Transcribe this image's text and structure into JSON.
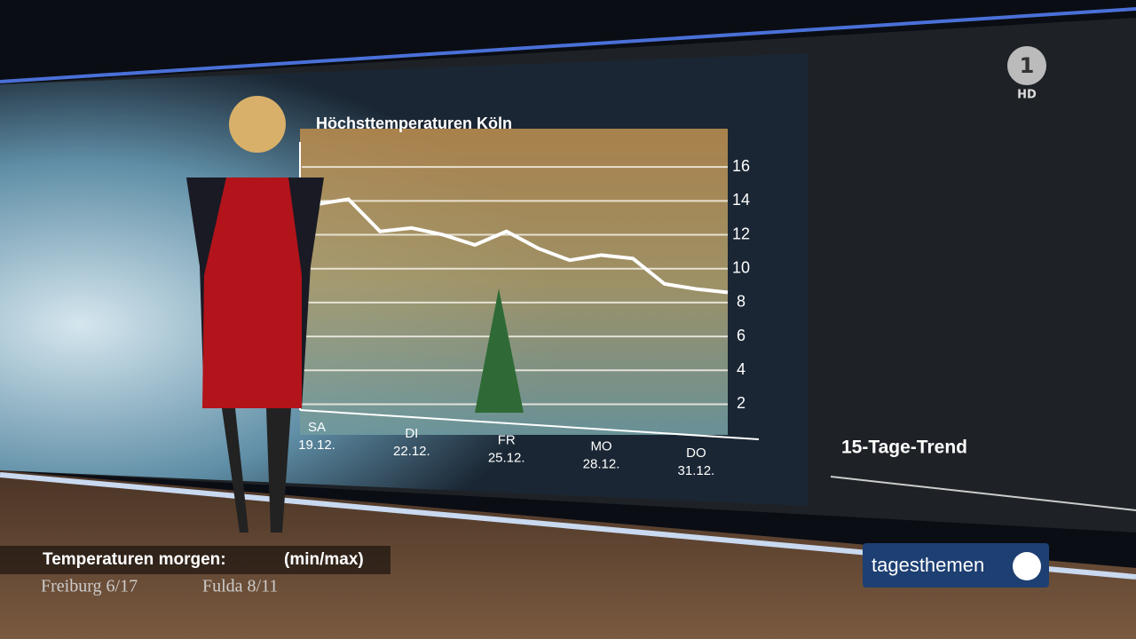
{
  "chart_data": {
    "type": "line",
    "title": "Höchsttemperaturen Köln",
    "categories": [
      "SA 19.12.",
      null,
      null,
      "DI 22.12.",
      null,
      null,
      "FR 25.12.",
      null,
      null,
      "MO 28.12.",
      null,
      null,
      "DO 31.12.",
      null
    ],
    "values": [
      13.8,
      14.1,
      12.2,
      12.4,
      12.0,
      11.4,
      12.2,
      11.2,
      10.5,
      10.8,
      10.6,
      9.1,
      8.8,
      8.6
    ],
    "color": "#ffffff",
    "ylim": [
      1.5,
      18
    ],
    "yticks": [
      2,
      4,
      6,
      8,
      10,
      12,
      14,
      16
    ],
    "grid": true
  },
  "trend_label": "15-Tage-Trend",
  "ticker": {
    "heading": "Temperaturen morgen:",
    "note": "(min/max)",
    "items": [
      "Freiburg 6/17",
      "Fulda 8/11"
    ]
  },
  "brand": {
    "show": "tagesthemen",
    "quality": "HD"
  }
}
